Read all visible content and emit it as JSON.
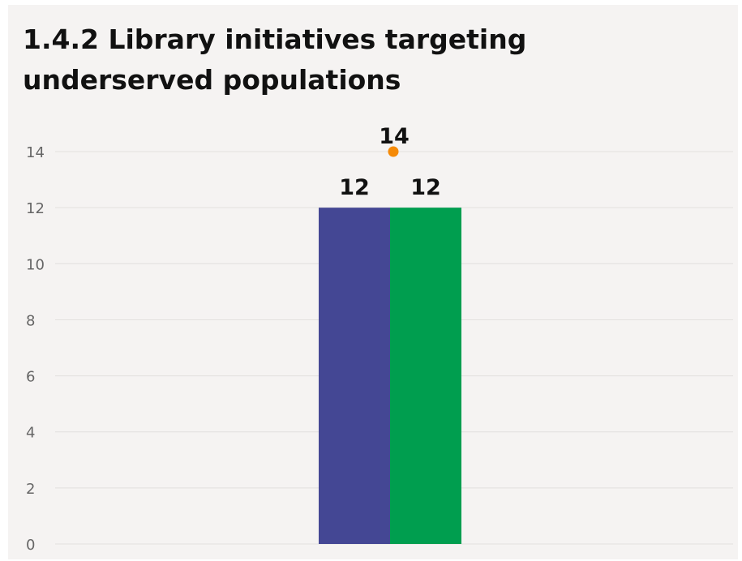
{
  "chart_data": {
    "type": "bar",
    "title": "1.4.2 Library initiatives targeting underserved populations",
    "xlabel": "",
    "ylabel": "",
    "ylim": [
      0,
      15
    ],
    "yticks": [
      0,
      2,
      4,
      6,
      8,
      10,
      12,
      14
    ],
    "grid": true,
    "legend": "none",
    "categories": [
      ""
    ],
    "series": [
      {
        "values": [
          12
        ],
        "color": "#444794",
        "kind": "bar"
      },
      {
        "values": [
          12
        ],
        "color": "#009e4f",
        "kind": "bar"
      },
      {
        "values": [
          14
        ],
        "color": "#f58a07",
        "kind": "point"
      }
    ],
    "data_labels": true
  }
}
